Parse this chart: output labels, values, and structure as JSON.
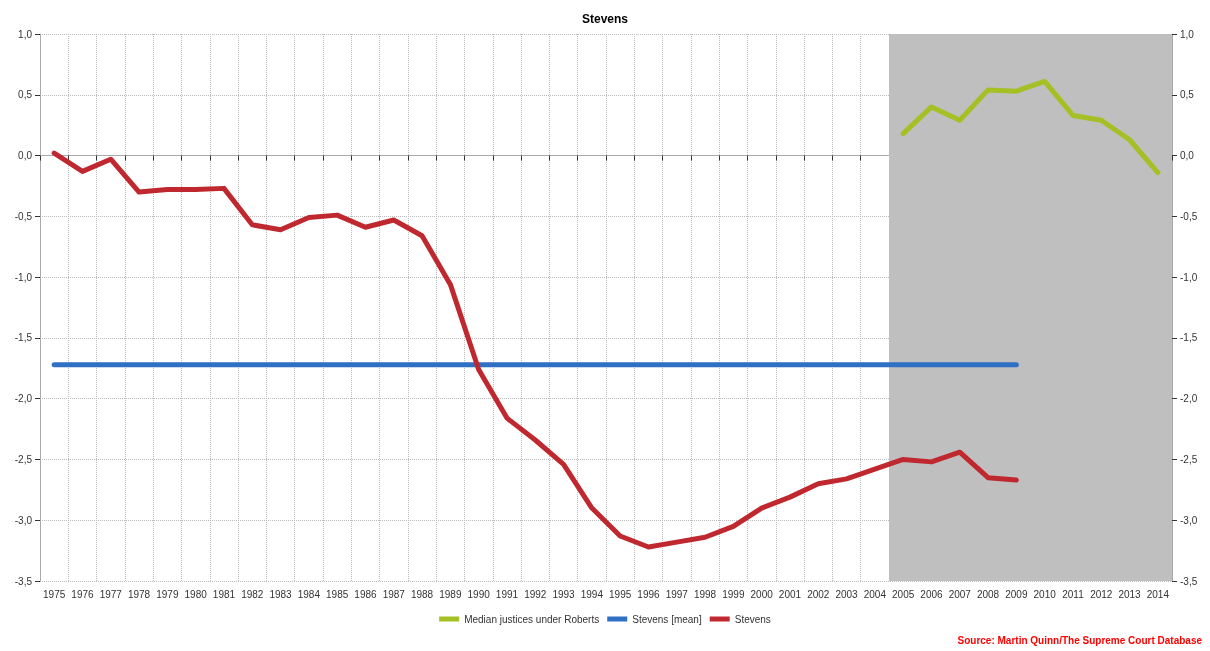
{
  "chart_data": {
    "type": "line",
    "title": "Stevens",
    "categories": [
      "1975",
      "1976",
      "1977",
      "1978",
      "1979",
      "1980",
      "1981",
      "1982",
      "1983",
      "1984",
      "1985",
      "1986",
      "1987",
      "1988",
      "1989",
      "1990",
      "1991",
      "1992",
      "1993",
      "1994",
      "1995",
      "1996",
      "1997",
      "1998",
      "1999",
      "2000",
      "2001",
      "2002",
      "2003",
      "2004",
      "2005",
      "2006",
      "2007",
      "2008",
      "2009",
      "2010",
      "2011",
      "2012",
      "2013",
      "2014"
    ],
    "series": [
      {
        "name": "Median justices under Roberts",
        "color": "#a5c024",
        "values": [
          null,
          null,
          null,
          null,
          null,
          null,
          null,
          null,
          null,
          null,
          null,
          null,
          null,
          null,
          null,
          null,
          null,
          null,
          null,
          null,
          null,
          null,
          null,
          null,
          null,
          null,
          null,
          null,
          null,
          null,
          0.18,
          0.4,
          0.29,
          0.54,
          0.53,
          0.61,
          0.33,
          0.29,
          0.13,
          -0.14
        ]
      },
      {
        "name": "Stevens [mean]",
        "color": "#2f6fc4",
        "values": [
          -1.72,
          -1.72,
          -1.72,
          -1.72,
          -1.72,
          -1.72,
          -1.72,
          -1.72,
          -1.72,
          -1.72,
          -1.72,
          -1.72,
          -1.72,
          -1.72,
          -1.72,
          -1.72,
          -1.72,
          -1.72,
          -1.72,
          -1.72,
          -1.72,
          -1.72,
          -1.72,
          -1.72,
          -1.72,
          -1.72,
          -1.72,
          -1.72,
          -1.72,
          -1.72,
          -1.72,
          -1.72,
          -1.72,
          -1.72,
          -1.72,
          null,
          null,
          null,
          null,
          null
        ]
      },
      {
        "name": "Stevens",
        "color": "#c0282f",
        "values": [
          0.02,
          -0.13,
          -0.03,
          -0.3,
          -0.28,
          -0.28,
          -0.27,
          -0.57,
          -0.61,
          -0.51,
          -0.49,
          -0.59,
          -0.53,
          -0.66,
          -1.06,
          -1.76,
          -2.16,
          -2.34,
          -2.54,
          -2.9,
          -3.13,
          -3.22,
          -3.18,
          -3.14,
          -3.05,
          -2.9,
          -2.81,
          -2.7,
          -2.66,
          -2.58,
          -2.5,
          -2.52,
          -2.44,
          -2.65,
          -2.67,
          null,
          null,
          null,
          null,
          null
        ]
      }
    ],
    "ylim": [
      -3.5,
      1.0
    ],
    "yticks": [
      {
        "value": -3.5,
        "label": "-3,5"
      },
      {
        "value": -3.0,
        "label": "-3,0"
      },
      {
        "value": -2.5,
        "label": "-2,5"
      },
      {
        "value": -2.0,
        "label": "-2,0"
      },
      {
        "value": -1.5,
        "label": "-1,5"
      },
      {
        "value": -1.0,
        "label": "-1,0"
      },
      {
        "value": -0.5,
        "label": "-0,5"
      },
      {
        "value": 0,
        "label": "0,0"
      },
      {
        "value": 0.5,
        "label": "0,5"
      },
      {
        "value": 1.0,
        "label": "1,0"
      }
    ],
    "y2lim": [
      -3.5,
      1.0
    ],
    "y2ticks": [
      {
        "value": -3.5,
        "label": "-3,5"
      },
      {
        "value": -3.0,
        "label": "-3,0"
      },
      {
        "value": -2.5,
        "label": "-2,5"
      },
      {
        "value": -2.0,
        "label": "-2,0"
      },
      {
        "value": -1.5,
        "label": "-1,5"
      },
      {
        "value": -1.0,
        "label": "-1,0"
      },
      {
        "value": -0.5,
        "label": "-0,5"
      },
      {
        "value": 0,
        "label": "0,0"
      },
      {
        "value": 0.5,
        "label": "0,5"
      },
      {
        "value": 1.0,
        "label": "1,0"
      }
    ],
    "bands": [
      {
        "axis": "x",
        "from": "2005",
        "to": "2014",
        "color": "#bfbfbf"
      }
    ],
    "annotations": [
      "Source: Martin Quinn/The Supreme Court Database"
    ],
    "grid": true,
    "legend": "bottom",
    "marker": "none",
    "line_style": "solid"
  }
}
